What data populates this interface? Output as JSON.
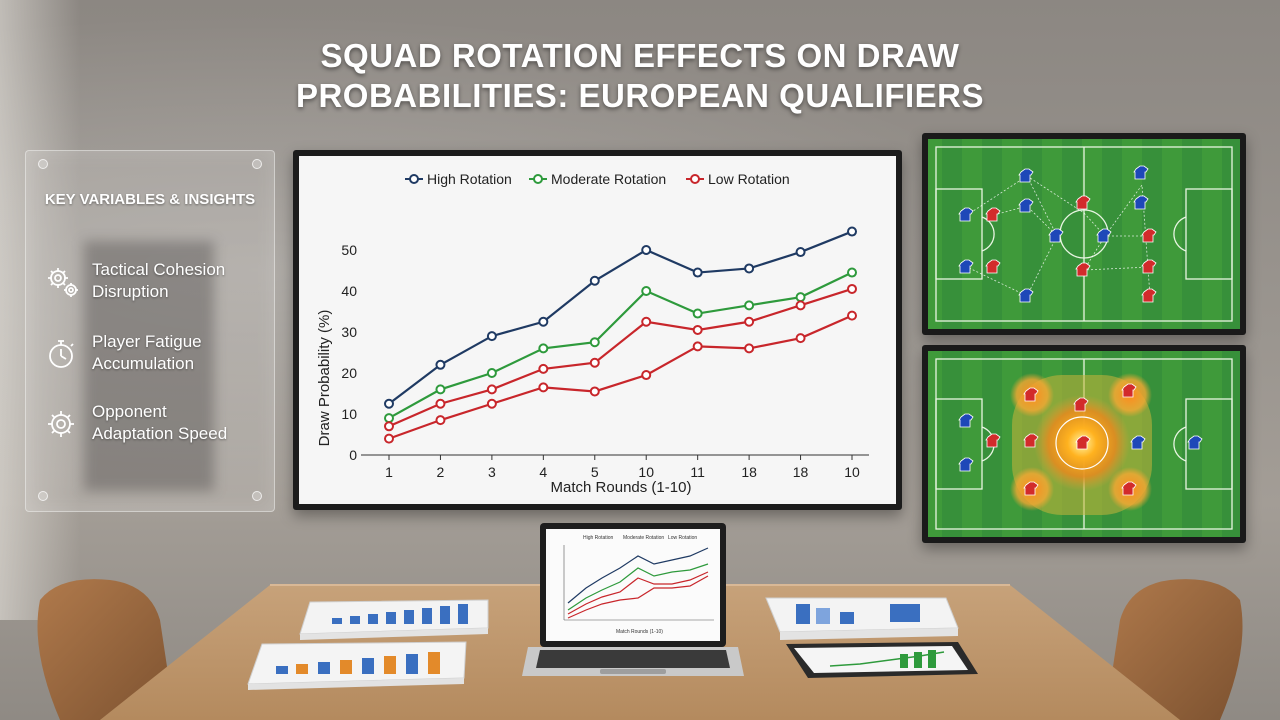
{
  "title": {
    "line1": "SQUAD ROTATION EFFECTS ON DRAW",
    "line2": "PROBABILITIES: EUROPEAN QUALIFIERS"
  },
  "panel": {
    "heading": "KEY VARIABLES & INSIGHTS",
    "items": [
      {
        "line1": "Tactical Cohesion",
        "line2": "Disruption",
        "icon": "gears-icon"
      },
      {
        "line1": "Player Fatigue",
        "line2": "Accumulation",
        "icon": "stopwatch-icon"
      },
      {
        "line1": "Opponent",
        "line2": "Adaptation Speed",
        "icon": "gear-icon"
      }
    ]
  },
  "colors": {
    "high": "#1f3a63",
    "moderate": "#2e9a3c",
    "low": "#c8262b",
    "low_lower": "#c8262b"
  },
  "chart_data": {
    "type": "line",
    "xlabel": "Match Rounds (1-10)",
    "ylabel": "Draw Probability (%)",
    "categories": [
      "1",
      "2",
      "3",
      "4",
      "5",
      "10",
      "11",
      "18",
      "18",
      "10"
    ],
    "ylim": [
      0,
      50
    ],
    "yticks": [
      "0",
      "10",
      "20",
      "30",
      "40",
      "50"
    ],
    "legend_position": "top",
    "grid": false,
    "series": [
      {
        "name": "High Rotation",
        "color": "#1f3a63",
        "values": [
          12.5,
          22,
          29,
          32.5,
          42.5,
          50,
          44.5,
          45.5,
          49.5,
          54.5
        ]
      },
      {
        "name": "Moderate Rotation",
        "color": "#2e9a3c",
        "values": [
          9,
          16,
          20,
          26,
          27.5,
          40,
          34.5,
          36.5,
          38.5,
          44.5
        ]
      },
      {
        "name": "Low Rotation",
        "color": "#c8262b",
        "values": [
          7,
          12.5,
          16,
          21,
          22.5,
          32.5,
          30.5,
          32.5,
          36.5,
          40.5
        ]
      },
      {
        "color": "#c8262b",
        "values": [
          4,
          8.5,
          12.5,
          16.5,
          15.5,
          19.5,
          26.5,
          26,
          28.5,
          34
        ]
      }
    ]
  }
}
